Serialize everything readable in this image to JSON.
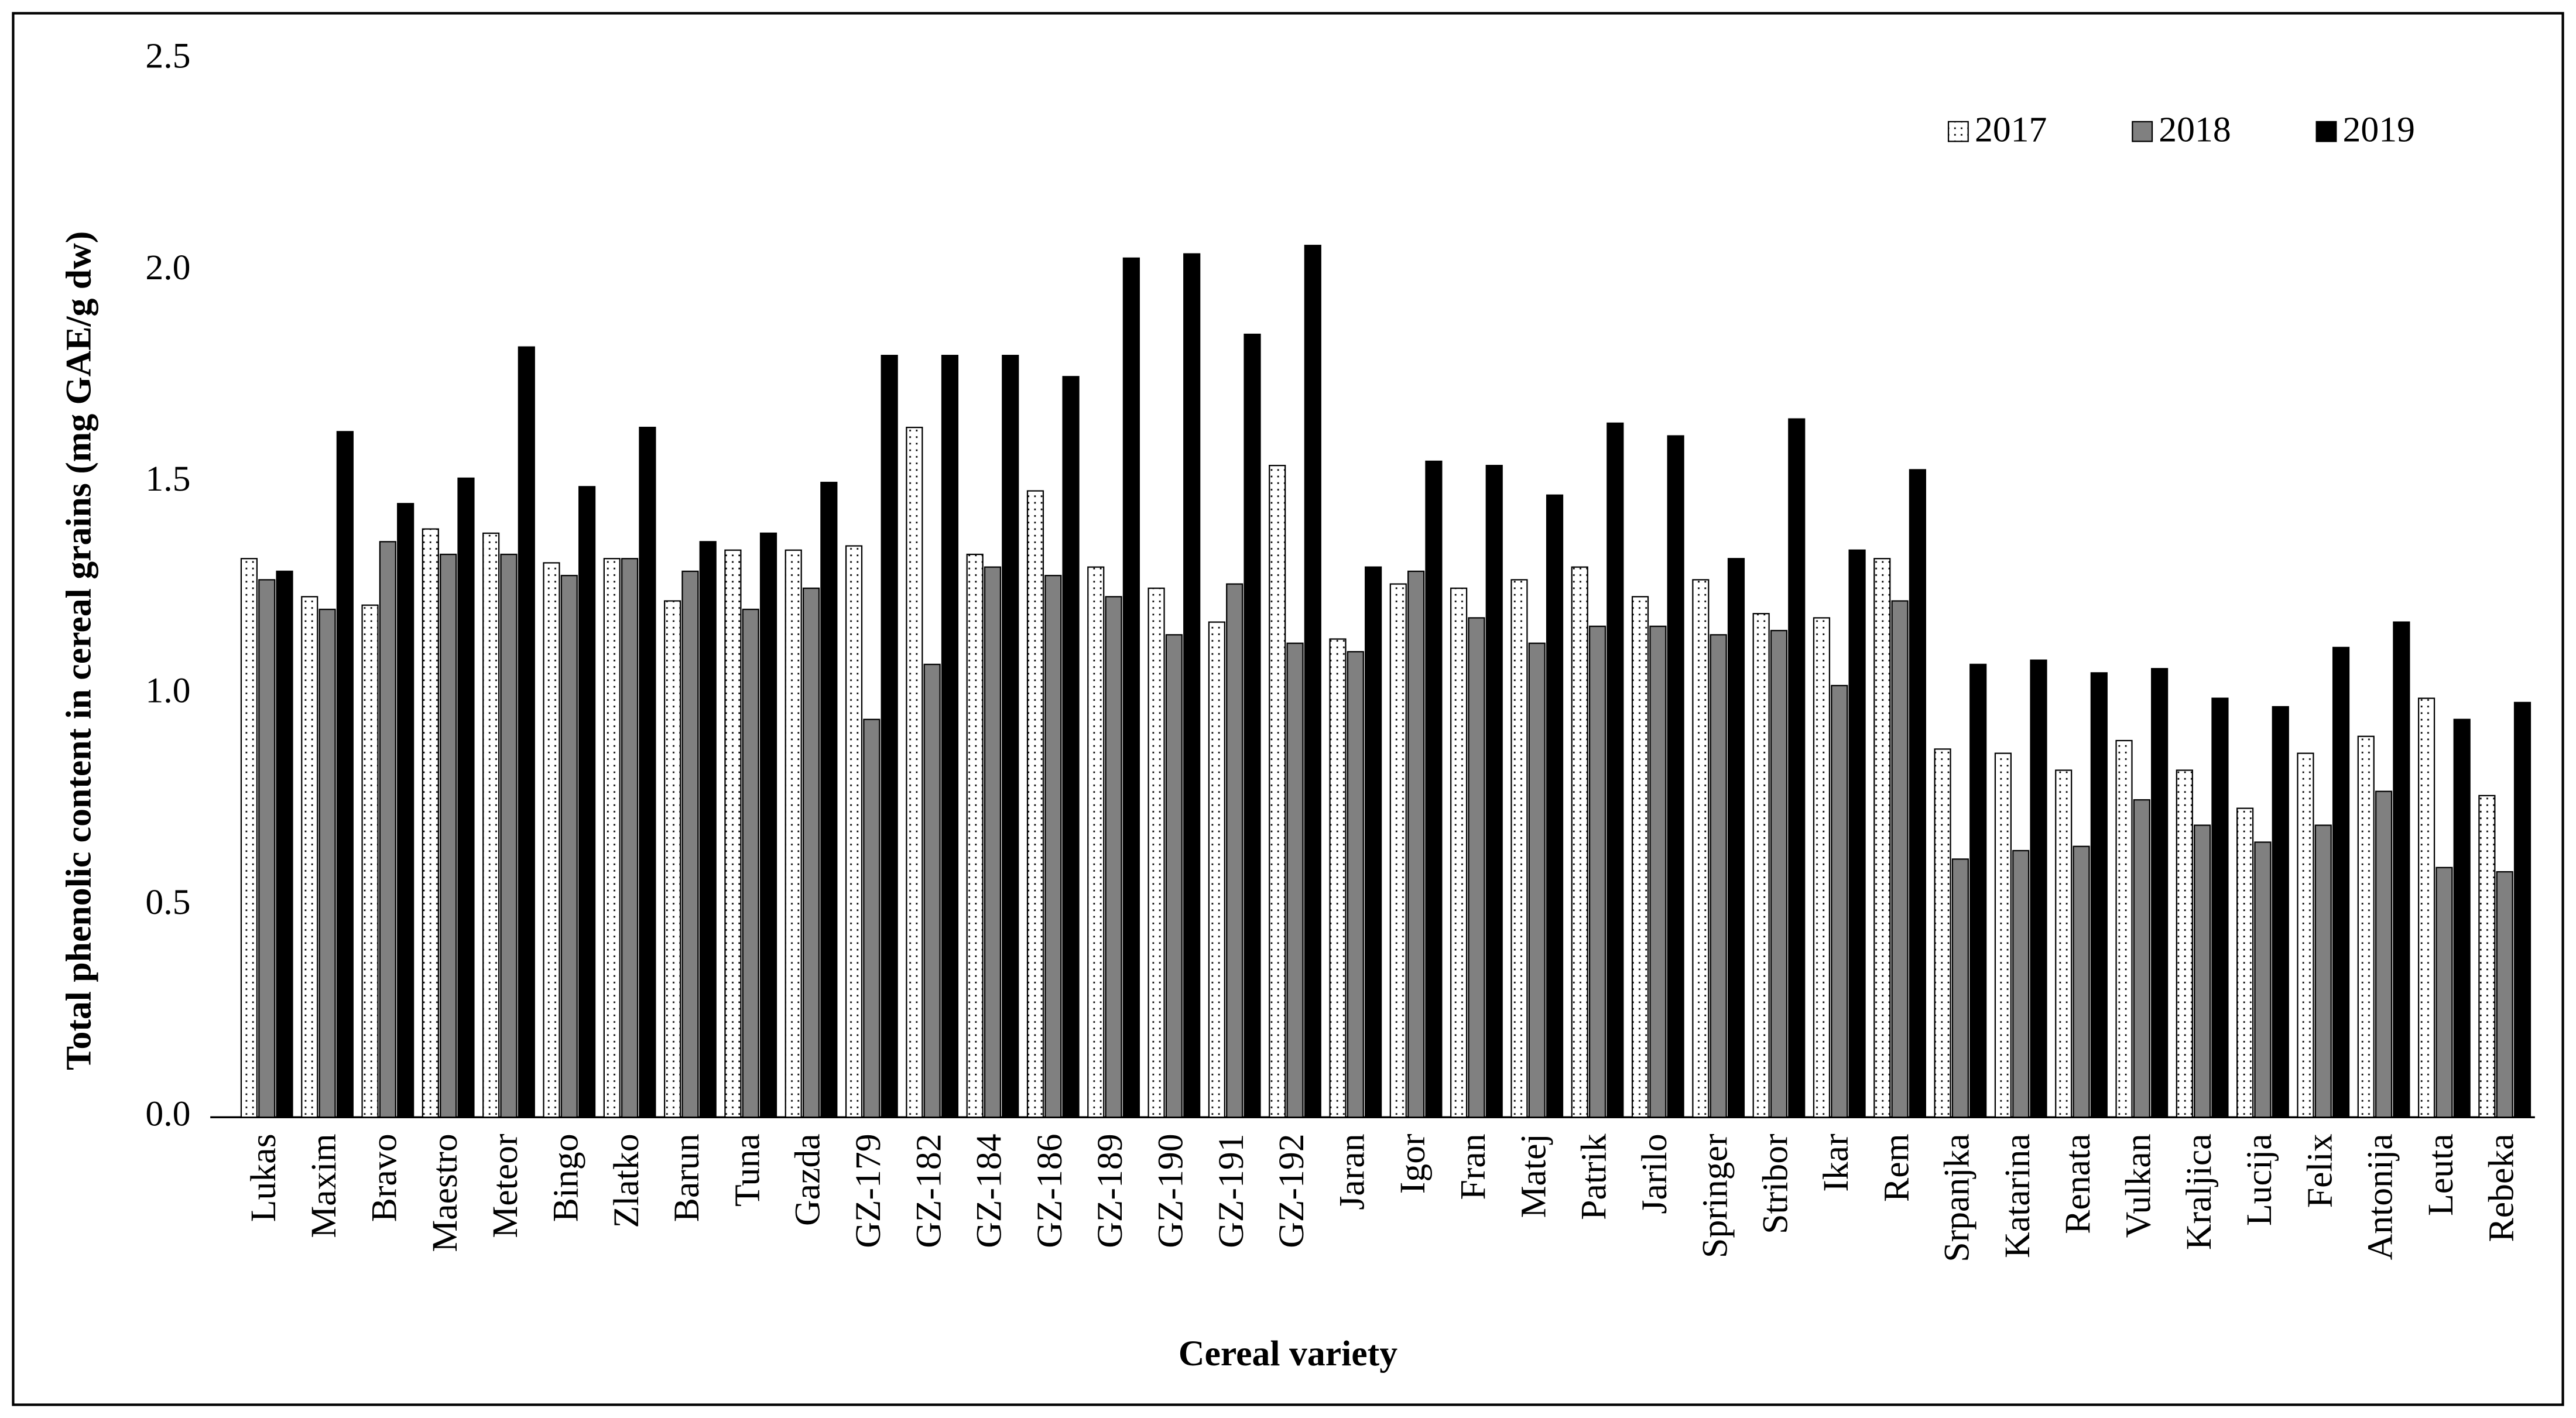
{
  "chart_data": {
    "type": "bar",
    "y_label": "Total phenolic content in cereal grains (mg GAE/g dw)",
    "x_label": "Cereal variety",
    "categories": [
      "Lukas",
      "Maxim",
      "Bravo",
      "Maestro",
      "Meteor",
      "Bingo",
      "Zlatko",
      "Barun",
      "Tuna",
      "Gazda",
      "GZ-179",
      "GZ-182",
      "GZ-184",
      "GZ-186",
      "GZ-189",
      "GZ-190",
      "GZ-191",
      "GZ-192",
      "Jaran",
      "Igor",
      "Fran",
      "Matej",
      "Patrik",
      "Jarilo",
      "Springer",
      "Stribor",
      "Ikar",
      "Rem",
      "Srpanjka",
      "Katarina",
      "Renata",
      "Vulkan",
      "Kraljica",
      "Lucija",
      "Felix",
      "Antonija",
      "Leuta",
      "Rebeka"
    ],
    "series": [
      {
        "name": "2017",
        "color": "#ffffff",
        "pattern": "dots",
        "values": [
          1.32,
          1.23,
          1.21,
          1.39,
          1.38,
          1.31,
          1.32,
          1.22,
          1.34,
          1.34,
          1.35,
          1.63,
          1.33,
          1.48,
          1.3,
          1.25,
          1.17,
          1.54,
          1.13,
          1.26,
          1.25,
          1.27,
          1.3,
          1.23,
          1.27,
          1.19,
          1.18,
          1.32,
          0.87,
          0.86,
          0.82,
          0.89,
          0.82,
          0.73,
          0.86,
          0.9,
          0.99,
          0.76
        ]
      },
      {
        "name": "2018",
        "color": "#808080",
        "values": [
          1.27,
          1.2,
          1.36,
          1.33,
          1.33,
          1.28,
          1.32,
          1.29,
          1.2,
          1.25,
          0.94,
          1.07,
          1.3,
          1.28,
          1.23,
          1.14,
          1.26,
          1.12,
          1.1,
          1.29,
          1.18,
          1.12,
          1.16,
          1.16,
          1.14,
          1.15,
          1.02,
          1.22,
          0.61,
          0.63,
          0.64,
          0.75,
          0.69,
          0.65,
          0.69,
          0.77,
          0.59,
          0.58
        ]
      },
      {
        "name": "2019",
        "color": "#000000",
        "values": [
          1.29,
          1.62,
          1.45,
          1.51,
          1.82,
          1.49,
          1.63,
          1.36,
          1.38,
          1.5,
          1.8,
          1.8,
          1.8,
          1.75,
          2.03,
          2.04,
          1.85,
          2.06,
          1.3,
          1.55,
          1.54,
          1.47,
          1.64,
          1.61,
          1.32,
          1.65,
          1.34,
          1.53,
          1.07,
          1.08,
          1.05,
          1.06,
          0.99,
          0.97,
          1.11,
          1.17,
          0.94,
          0.98
        ]
      }
    ],
    "ylim": [
      0,
      2.5
    ],
    "yticks": [
      {
        "value": 0,
        "label": "0.0"
      },
      0.5,
      {
        "value": 1,
        "label": "1.0"
      },
      1.5,
      {
        "value": 2,
        "label": "2.0"
      },
      2.5
    ],
    "grid": false,
    "legend": "top-right"
  }
}
